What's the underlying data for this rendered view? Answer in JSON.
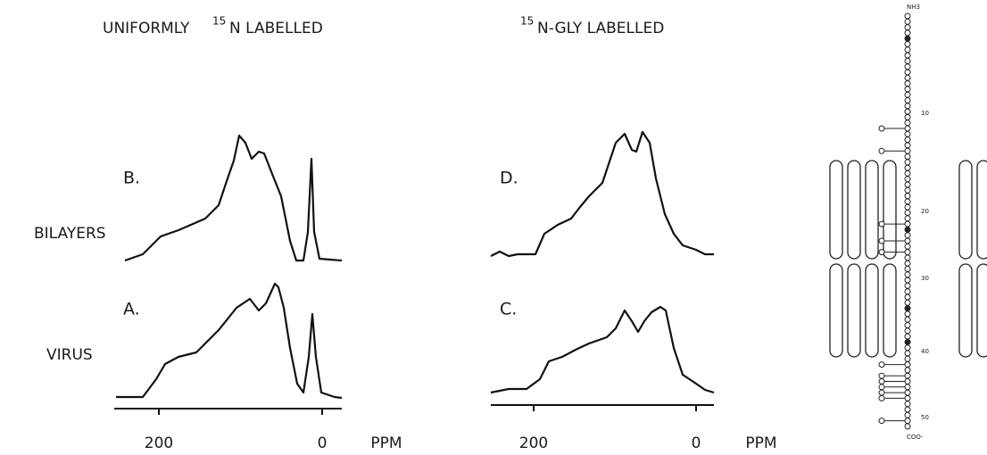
{
  "columns": [
    {
      "title": {
        "prefix": "UNIFORMLY",
        "isotope": "15",
        "suffix": "N LABELLED"
      }
    },
    {
      "title": {
        "isotope": "15",
        "suffix": "N-GLY LABELLED"
      }
    }
  ],
  "rows": [
    "BILAYERS",
    "VIRUS"
  ],
  "panels": [
    "B.",
    "A.",
    "D.",
    "C."
  ],
  "axis": {
    "ticks": [
      "200",
      "0"
    ],
    "unit": "PPM"
  },
  "diagram": {
    "n_terminus": "NH3",
    "c_terminus": "COO-",
    "residue_ticks": [
      "10",
      "20",
      "30",
      "40",
      "50"
    ]
  }
}
